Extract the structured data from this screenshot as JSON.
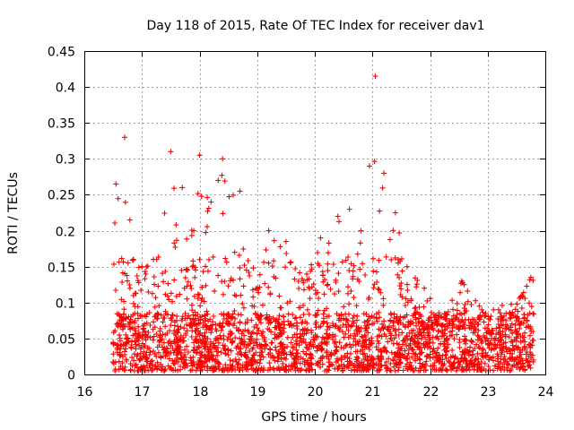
{
  "chart_data": {
    "type": "scatter",
    "title": "Day 118 of 2015, Rate Of TEC Index for receiver dav1",
    "xlabel": "GPS time / hours",
    "ylabel": "ROTI / TECUs",
    "xlim": [
      16,
      24
    ],
    "ylim": [
      0,
      0.45
    ],
    "xticks": [
      "16",
      "17",
      "18",
      "19",
      "20",
      "21",
      "22",
      "23",
      "24"
    ],
    "yticks": [
      "0",
      "0.05",
      "0.1",
      "0.15",
      "0.2",
      "0.25",
      "0.3",
      "0.35",
      "0.4",
      "0.45"
    ],
    "grid": true,
    "marker": "+",
    "color": "#ff0000",
    "series": [
      {
        "name": "ROTI dav1",
        "x_range": [
          16.5,
          23.8
        ],
        "approx_points": 2600,
        "envelope": [
          {
            "x": 16.55,
            "y_max": 0.265
          },
          {
            "x": 16.7,
            "y_max": 0.33
          },
          {
            "x": 16.85,
            "y_max": 0.16
          },
          {
            "x": 17.0,
            "y_max": 0.15
          },
          {
            "x": 17.2,
            "y_max": 0.16
          },
          {
            "x": 17.5,
            "y_max": 0.31
          },
          {
            "x": 17.7,
            "y_max": 0.26
          },
          {
            "x": 17.9,
            "y_max": 0.2
          },
          {
            "x": 18.0,
            "y_max": 0.305
          },
          {
            "x": 18.2,
            "y_max": 0.24
          },
          {
            "x": 18.4,
            "y_max": 0.3
          },
          {
            "x": 18.7,
            "y_max": 0.255
          },
          {
            "x": 19.0,
            "y_max": 0.12
          },
          {
            "x": 19.2,
            "y_max": 0.2
          },
          {
            "x": 19.5,
            "y_max": 0.185
          },
          {
            "x": 19.8,
            "y_max": 0.13
          },
          {
            "x": 20.1,
            "y_max": 0.19
          },
          {
            "x": 20.4,
            "y_max": 0.22
          },
          {
            "x": 20.6,
            "y_max": 0.23
          },
          {
            "x": 20.8,
            "y_max": 0.2
          },
          {
            "x": 20.95,
            "y_max": 0.29
          },
          {
            "x": 21.05,
            "y_max": 0.415
          },
          {
            "x": 21.2,
            "y_max": 0.28
          },
          {
            "x": 21.4,
            "y_max": 0.225
          },
          {
            "x": 21.6,
            "y_max": 0.15
          },
          {
            "x": 21.9,
            "y_max": 0.12
          },
          {
            "x": 22.2,
            "y_max": 0.08
          },
          {
            "x": 22.55,
            "y_max": 0.13
          },
          {
            "x": 22.9,
            "y_max": 0.09
          },
          {
            "x": 23.1,
            "y_max": 0.09
          },
          {
            "x": 23.6,
            "y_max": 0.11
          },
          {
            "x": 23.75,
            "y_max": 0.135
          }
        ],
        "typical_range": [
          0.005,
          0.08
        ]
      }
    ]
  }
}
